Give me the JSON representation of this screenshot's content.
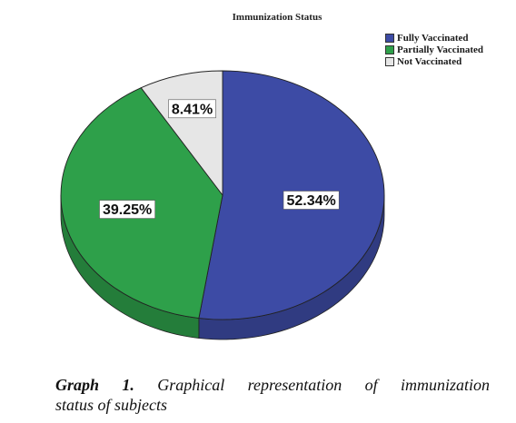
{
  "chart_data": {
    "type": "pie",
    "title": "Immunization Status",
    "categories": [
      "Fully Vaccinated",
      "Partially Vaccinated",
      "Not Vaccinated"
    ],
    "values": [
      52.34,
      39.25,
      8.41
    ],
    "data_labels": [
      "52.34%",
      "39.25%",
      "8.41%"
    ],
    "colors": [
      "#3d4ba5",
      "#2ea04a",
      "#e6e6e6"
    ],
    "legend": "top-right"
  },
  "caption": {
    "label": "Graph 1.",
    "text_line1": "Graphical representation of immunization",
    "text_line2": "status of subjects"
  }
}
